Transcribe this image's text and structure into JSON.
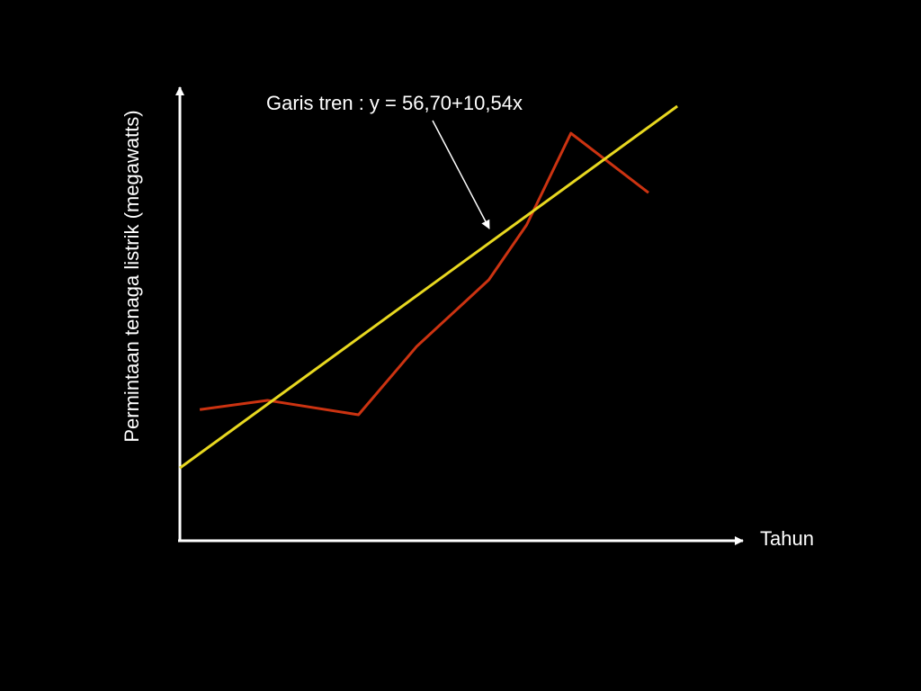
{
  "chart_data": {
    "type": "line",
    "annotation": "Garis tren : y = 56,70+10,54x",
    "x_label": "Tahun",
    "y_label": "Permintaan tenaga listrik (megawatts)",
    "xlim": [
      0,
      11.3
    ],
    "ylim": [
      35.5,
      167.6
    ],
    "series": [
      {
        "color": "#cc3311",
        "x": [
          0.4,
          1.76,
          3.59,
          4.76,
          6.21,
          6.97,
          7.86,
          9.42
        ],
        "values": [
          73.7,
          76.4,
          72.2,
          92.1,
          111.5,
          127.5,
          154.2,
          136.9
        ]
      },
      {
        "color": "#e8d820",
        "x": [
          0,
          10
        ],
        "values": [
          56.7,
          162.1
        ]
      }
    ]
  }
}
